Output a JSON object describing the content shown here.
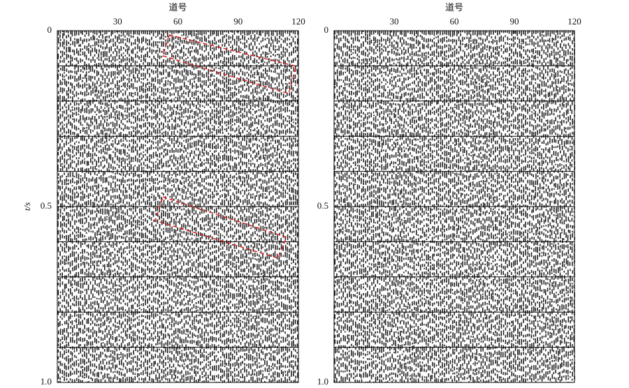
{
  "chart_data": [
    {
      "type": "seismic",
      "xlabel": "道号",
      "ylabel": "t/s",
      "xlim": [
        0,
        120
      ],
      "xticks": [
        30,
        60,
        90,
        120
      ],
      "ylim": [
        0,
        1
      ],
      "yticks": [
        0,
        0.5,
        {
          "value": 1,
          "label": "1.0"
        }
      ],
      "hlines": [
        0.1,
        0.2,
        0.3,
        0.4,
        0.5,
        0.6,
        0.7,
        0.8,
        0.9
      ]
    },
    {
      "type": "seismic",
      "xlabel": "道号",
      "xlim": [
        0,
        120
      ],
      "xticks": [
        30,
        60,
        90,
        120
      ],
      "ylim": [
        0,
        1
      ],
      "yticks": [
        0,
        0.5,
        {
          "value": 1,
          "label": "1.0"
        }
      ],
      "hlines": [
        0.1,
        0.2,
        0.3,
        0.4,
        0.5,
        0.6,
        0.7,
        0.8,
        0.9
      ]
    }
  ]
}
